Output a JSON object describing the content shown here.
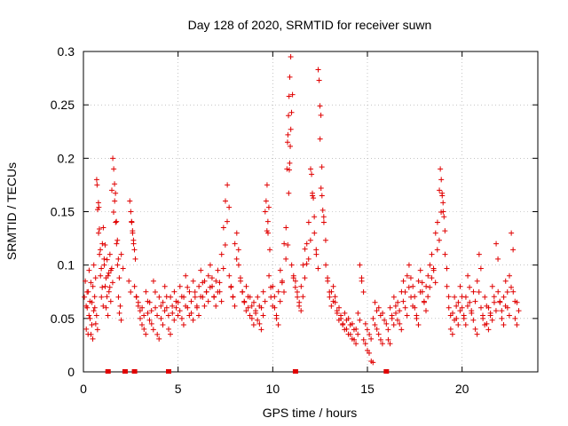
{
  "chart_data": {
    "type": "scatter",
    "title": "Day 128 of 2020, SRMTID for receiver suwn",
    "xlabel": "GPS time / hours",
    "ylabel": "SRMTID / TECUs",
    "xlim": [
      0,
      24
    ],
    "ylim": [
      0,
      0.3
    ],
    "xticks": [
      0,
      5,
      10,
      15,
      20
    ],
    "xtick_labels": [
      "0",
      "5",
      "10",
      "15",
      "20"
    ],
    "yticks": [
      0,
      0.05,
      0.1,
      0.15,
      0.2,
      0.25,
      0.3
    ],
    "ytick_labels": [
      "0",
      "0.05",
      "0.1",
      "0.15",
      "0.2",
      "0.25",
      "0.3"
    ],
    "grid": true,
    "marker": "+",
    "color": "#e00000",
    "series": [
      {
        "name": "SRMTID",
        "points": [
          [
            0.05,
            0.07
          ],
          [
            0.1,
            0.085
          ],
          [
            0.15,
            0.04
          ],
          [
            0.2,
            0.06
          ],
          [
            0.25,
            0.075
          ],
          [
            0.3,
            0.095
          ],
          [
            0.35,
            0.05
          ],
          [
            0.4,
            0.035
          ],
          [
            0.45,
            0.065
          ],
          [
            0.5,
            0.08
          ],
          [
            0.55,
            0.1
          ],
          [
            0.6,
            0.06
          ],
          [
            0.65,
            0.045
          ],
          [
            0.7,
            0.18
          ],
          [
            0.72,
            0.175
          ],
          [
            0.75,
            0.152
          ],
          [
            0.8,
            0.13
          ],
          [
            0.85,
            0.11
          ],
          [
            0.9,
            0.09
          ],
          [
            0.95,
            0.07
          ],
          [
            1.0,
            0.12
          ],
          [
            1.05,
            0.135
          ],
          [
            1.1,
            0.1
          ],
          [
            1.15,
            0.08
          ],
          [
            1.2,
            0.06
          ],
          [
            1.25,
            0.105
          ],
          [
            1.3,
            0.09
          ],
          [
            1.35,
            0.075
          ],
          [
            1.4,
            0.11
          ],
          [
            1.45,
            0.095
          ],
          [
            1.5,
            0.17
          ],
          [
            1.55,
            0.2
          ],
          [
            1.6,
            0.19
          ],
          [
            1.65,
            0.16
          ],
          [
            1.7,
            0.14
          ],
          [
            1.75,
            0.12
          ],
          [
            1.8,
            0.1
          ],
          [
            1.85,
            0.07
          ],
          [
            1.9,
            0.055
          ],
          [
            2.0,
            0.11
          ],
          [
            2.4,
            0.085
          ],
          [
            2.45,
            0.16
          ],
          [
            2.5,
            0.15
          ],
          [
            2.55,
            0.14
          ],
          [
            2.6,
            0.13
          ],
          [
            2.65,
            0.12
          ],
          [
            2.7,
            0.08
          ],
          [
            2.8,
            0.07
          ],
          [
            2.9,
            0.065
          ],
          [
            3.0,
            0.05
          ],
          [
            3.1,
            0.06
          ],
          [
            3.2,
            0.04
          ],
          [
            3.3,
            0.075
          ],
          [
            3.4,
            0.055
          ],
          [
            3.5,
            0.065
          ],
          [
            3.6,
            0.045
          ],
          [
            3.7,
            0.085
          ],
          [
            3.8,
            0.06
          ],
          [
            3.9,
            0.035
          ],
          [
            4.0,
            0.07
          ],
          [
            4.1,
            0.05
          ],
          [
            4.2,
            0.065
          ],
          [
            4.3,
            0.08
          ],
          [
            4.4,
            0.06
          ],
          [
            4.5,
            0.04
          ],
          [
            4.6,
            0.07
          ],
          [
            4.7,
            0.055
          ],
          [
            4.8,
            0.075
          ],
          [
            4.9,
            0.06
          ],
          [
            5.0,
            0.065
          ],
          [
            5.1,
            0.08
          ],
          [
            5.2,
            0.05
          ],
          [
            5.3,
            0.07
          ],
          [
            5.4,
            0.09
          ],
          [
            5.5,
            0.06
          ],
          [
            5.6,
            0.075
          ],
          [
            5.7,
            0.055
          ],
          [
            5.8,
            0.085
          ],
          [
            5.9,
            0.07
          ],
          [
            6.0,
            0.06
          ],
          [
            6.1,
            0.08
          ],
          [
            6.2,
            0.095
          ],
          [
            6.3,
            0.07
          ],
          [
            6.4,
            0.085
          ],
          [
            6.5,
            0.075
          ],
          [
            6.6,
            0.09
          ],
          [
            6.7,
            0.1
          ],
          [
            6.8,
            0.08
          ],
          [
            6.9,
            0.07
          ],
          [
            7.0,
            0.085
          ],
          [
            7.1,
            0.095
          ],
          [
            7.2,
            0.075
          ],
          [
            7.3,
            0.11
          ],
          [
            7.4,
            0.135
          ],
          [
            7.5,
            0.16
          ],
          [
            7.6,
            0.175
          ],
          [
            7.7,
            0.09
          ],
          [
            7.8,
            0.08
          ],
          [
            7.9,
            0.07
          ],
          [
            8.0,
            0.12
          ],
          [
            8.1,
            0.13
          ],
          [
            8.2,
            0.1
          ],
          [
            8.3,
            0.085
          ],
          [
            8.4,
            0.075
          ],
          [
            8.5,
            0.065
          ],
          [
            8.6,
            0.08
          ],
          [
            8.7,
            0.06
          ],
          [
            8.8,
            0.07
          ],
          [
            8.9,
            0.05
          ],
          [
            9.0,
            0.065
          ],
          [
            9.1,
            0.055
          ],
          [
            9.2,
            0.07
          ],
          [
            9.3,
            0.045
          ],
          [
            9.4,
            0.06
          ],
          [
            9.5,
            0.075
          ],
          [
            9.6,
            0.15
          ],
          [
            9.65,
            0.16
          ],
          [
            9.7,
            0.175
          ],
          [
            9.75,
            0.13
          ],
          [
            9.8,
            0.09
          ],
          [
            9.9,
            0.07
          ],
          [
            10.0,
            0.08
          ],
          [
            10.1,
            0.06
          ],
          [
            10.2,
            0.05
          ],
          [
            10.3,
            0.075
          ],
          [
            10.4,
            0.095
          ],
          [
            10.5,
            0.085
          ],
          [
            10.6,
            0.12
          ],
          [
            10.7,
            0.135
          ],
          [
            10.75,
            0.19
          ],
          [
            10.78,
            0.215
          ],
          [
            10.8,
            0.222
          ],
          [
            10.83,
            0.24
          ],
          [
            10.86,
            0.258
          ],
          [
            10.9,
            0.276
          ],
          [
            10.95,
            0.295
          ],
          [
            11.0,
            0.1
          ],
          [
            11.1,
            0.09
          ],
          [
            11.2,
            0.085
          ],
          [
            11.3,
            0.07
          ],
          [
            11.4,
            0.065
          ],
          [
            11.5,
            0.08
          ],
          [
            11.6,
            0.1
          ],
          [
            11.7,
            0.115
          ],
          [
            11.8,
            0.12
          ],
          [
            11.9,
            0.14
          ],
          [
            12.0,
            0.19
          ],
          [
            12.05,
            0.185
          ],
          [
            12.1,
            0.165
          ],
          [
            12.2,
            0.13
          ],
          [
            12.3,
            0.11
          ],
          [
            12.4,
            0.283
          ],
          [
            12.45,
            0.273
          ],
          [
            12.5,
            0.218
          ],
          [
            12.55,
            0.172
          ],
          [
            12.6,
            0.165
          ],
          [
            12.7,
            0.14
          ],
          [
            12.8,
            0.1
          ],
          [
            12.9,
            0.085
          ],
          [
            13.0,
            0.07
          ],
          [
            13.1,
            0.075
          ],
          [
            13.2,
            0.08
          ],
          [
            13.3,
            0.065
          ],
          [
            13.4,
            0.055
          ],
          [
            13.5,
            0.06
          ],
          [
            13.6,
            0.05
          ],
          [
            13.7,
            0.045
          ],
          [
            13.8,
            0.055
          ],
          [
            13.9,
            0.04
          ],
          [
            14.0,
            0.05
          ],
          [
            14.1,
            0.035
          ],
          [
            14.2,
            0.045
          ],
          [
            14.3,
            0.03
          ],
          [
            14.4,
            0.04
          ],
          [
            14.5,
            0.055
          ],
          [
            14.6,
            0.1
          ],
          [
            14.7,
            0.085
          ],
          [
            14.8,
            0.03
          ],
          [
            14.9,
            0.045
          ],
          [
            15.0,
            0.02
          ],
          [
            15.1,
            0.035
          ],
          [
            15.2,
            0.01
          ],
          [
            15.3,
            0.05
          ],
          [
            15.4,
            0.065
          ],
          [
            15.5,
            0.04
          ],
          [
            15.6,
            0.06
          ],
          [
            15.7,
            0.03
          ],
          [
            15.8,
            0.055
          ],
          [
            16.0,
            0.045
          ],
          [
            16.1,
            0.03
          ],
          [
            16.2,
            0.06
          ],
          [
            16.3,
            0.05
          ],
          [
            16.4,
            0.07
          ],
          [
            16.5,
            0.055
          ],
          [
            16.6,
            0.065
          ],
          [
            16.7,
            0.045
          ],
          [
            16.8,
            0.075
          ],
          [
            16.9,
            0.085
          ],
          [
            17.0,
            0.06
          ],
          [
            17.1,
            0.09
          ],
          [
            17.2,
            0.1
          ],
          [
            17.3,
            0.07
          ],
          [
            17.4,
            0.08
          ],
          [
            17.5,
            0.06
          ],
          [
            17.6,
            0.05
          ],
          [
            17.7,
            0.085
          ],
          [
            17.8,
            0.095
          ],
          [
            17.9,
            0.075
          ],
          [
            18.0,
            0.065
          ],
          [
            18.1,
            0.08
          ],
          [
            18.2,
            0.09
          ],
          [
            18.3,
            0.1
          ],
          [
            18.4,
            0.11
          ],
          [
            18.5,
            0.095
          ],
          [
            18.6,
            0.13
          ],
          [
            18.7,
            0.14
          ],
          [
            18.8,
            0.17
          ],
          [
            18.85,
            0.19
          ],
          [
            18.9,
            0.18
          ],
          [
            18.95,
            0.165
          ],
          [
            19.0,
            0.15
          ],
          [
            19.1,
            0.11
          ],
          [
            19.2,
            0.08
          ],
          [
            19.3,
            0.06
          ],
          [
            19.4,
            0.04
          ],
          [
            19.5,
            0.055
          ],
          [
            19.6,
            0.07
          ],
          [
            19.7,
            0.05
          ],
          [
            19.8,
            0.065
          ],
          [
            19.9,
            0.08
          ],
          [
            20.0,
            0.06
          ],
          [
            20.1,
            0.05
          ],
          [
            20.2,
            0.07
          ],
          [
            20.3,
            0.09
          ],
          [
            20.4,
            0.065
          ],
          [
            20.5,
            0.055
          ],
          [
            20.6,
            0.075
          ],
          [
            20.7,
            0.04
          ],
          [
            20.8,
            0.085
          ],
          [
            20.9,
            0.11
          ],
          [
            21.0,
            0.06
          ],
          [
            21.1,
            0.05
          ],
          [
            21.2,
            0.07
          ],
          [
            21.3,
            0.045
          ],
          [
            21.4,
            0.06
          ],
          [
            21.5,
            0.055
          ],
          [
            21.6,
            0.08
          ],
          [
            21.7,
            0.065
          ],
          [
            21.8,
            0.12
          ],
          [
            21.9,
            0.075
          ],
          [
            22.0,
            0.065
          ],
          [
            22.1,
            0.05
          ],
          [
            22.2,
            0.07
          ],
          [
            22.3,
            0.085
          ],
          [
            22.4,
            0.06
          ],
          [
            22.5,
            0.09
          ],
          [
            22.6,
            0.13
          ],
          [
            22.7,
            0.075
          ],
          [
            22.8,
            0.05
          ],
          [
            22.9,
            0.065
          ]
        ]
      }
    ],
    "zero_markers_x": [
      1.3,
      2.2,
      2.7,
      4.5,
      11.2,
      16.0
    ]
  }
}
